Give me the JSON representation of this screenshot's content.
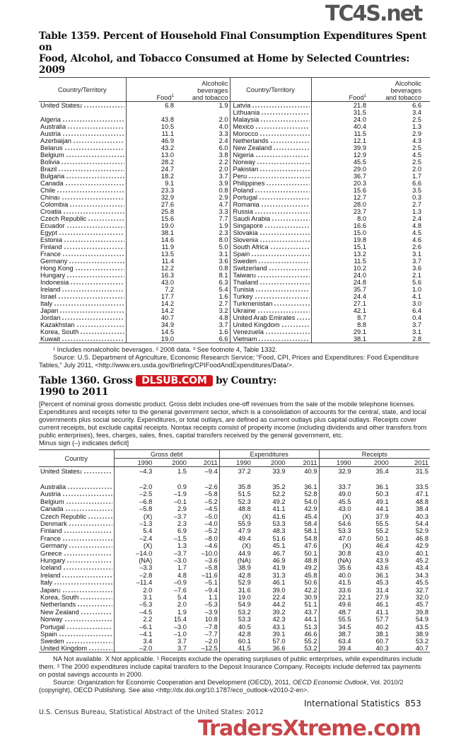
{
  "watermarks": {
    "top": "TC4S.net",
    "middle": "DLSUB.COM",
    "bottom": "TradersXtreme.com"
  },
  "table1359": {
    "title_line1": "Table 1359. Percent of Household Final Consumption Expenditures Spent on",
    "title_line2": "Food, Alcohol, and Tobacco Consumed at Home by Selected Countries: 2009",
    "headers": {
      "country": "Country/Territory",
      "food": "Food",
      "food_sup": "1",
      "alc_l1": "Alcoholic",
      "alc_l2": "beverages",
      "alc_l3": "and tobacco"
    },
    "left": [
      {
        "name": "United States",
        "sup": "2",
        "food": "6.8",
        "alc": "1.9"
      },
      {
        "name": "",
        "food": "",
        "alc": ""
      },
      {
        "name": "Algeria",
        "food": "43.8",
        "alc": "2.0"
      },
      {
        "name": "Australia",
        "food": "10.5",
        "alc": "4.0"
      },
      {
        "name": "Austria",
        "food": "11.1",
        "alc": "3.3"
      },
      {
        "name": "Azerbaijan",
        "food": "46.9",
        "alc": "2.4"
      },
      {
        "name": "Belarus",
        "food": "43.2",
        "alc": "6.0"
      },
      {
        "name": "Belgium",
        "food": "13.0",
        "alc": "3.8"
      },
      {
        "name": "Bolivia",
        "food": "28.2",
        "alc": "2.2"
      },
      {
        "name": "Brazil",
        "food": "24.7",
        "alc": "2.0"
      },
      {
        "name": "Bulgaria",
        "food": "18.2",
        "alc": "3.7"
      },
      {
        "name": "Canada",
        "food": "9.1",
        "alc": "3.9"
      },
      {
        "name": "Chile",
        "food": "23.3",
        "alc": "0.8"
      },
      {
        "name": "China",
        "sup": "3",
        "food": "32.9",
        "alc": "2.9"
      },
      {
        "name": "Colombia",
        "food": "27.6",
        "alc": "4.7"
      },
      {
        "name": "Croatia",
        "food": "25.8",
        "alc": "3.3"
      },
      {
        "name": "Czech Republic",
        "food": "15.6",
        "alc": "7.7"
      },
      {
        "name": "Ecuador",
        "food": "19.0",
        "alc": "1.9"
      },
      {
        "name": "Egypt",
        "food": "38.1",
        "alc": "2.3"
      },
      {
        "name": "Estonia",
        "food": "14.6",
        "alc": "8.0"
      },
      {
        "name": "Finland",
        "food": "11.9",
        "alc": "5.0"
      },
      {
        "name": "France",
        "food": "13.5",
        "alc": "3.1"
      },
      {
        "name": "Germany",
        "food": "11.4",
        "alc": "3.6"
      },
      {
        "name": "Hong Kong",
        "food": "12.2",
        "alc": "0.8"
      },
      {
        "name": "Hungary",
        "food": "16.3",
        "alc": "8.1"
      },
      {
        "name": "Indonesia",
        "food": "43.0",
        "alc": "6.3"
      },
      {
        "name": "Ireland",
        "food": "7.2",
        "alc": "5.4"
      },
      {
        "name": "Israel",
        "food": "17.7",
        "alc": "1.6"
      },
      {
        "name": "Italy",
        "food": "14.2",
        "alc": "2.7"
      },
      {
        "name": "Japan",
        "food": "14.2",
        "alc": "3.2"
      },
      {
        "name": "Jordan",
        "food": "40.7",
        "alc": "4.8"
      },
      {
        "name": "Kazakhstan",
        "food": "34.9",
        "alc": "3.7"
      },
      {
        "name": "Korea, South",
        "food": "14.5",
        "alc": "1.6"
      },
      {
        "name": "Kuwait",
        "food": "19.0",
        "alc": "6.6"
      }
    ],
    "right": [
      {
        "name": "Latvia",
        "food": "21.8",
        "alc": "6.6"
      },
      {
        "name": "Lithuania",
        "food": "31.5",
        "alc": "3.4"
      },
      {
        "name": "Malaysia",
        "food": "24.0",
        "alc": "2.5"
      },
      {
        "name": "Mexico",
        "food": "40.4",
        "alc": "1.3"
      },
      {
        "name": "Morocco",
        "food": "11.5",
        "alc": "2.9"
      },
      {
        "name": "Netherlands",
        "food": "12.1",
        "alc": "4.3"
      },
      {
        "name": "New Zealand",
        "food": "39.9",
        "alc": "2.5"
      },
      {
        "name": "Nigeria",
        "food": "12.9",
        "alc": "4.5"
      },
      {
        "name": "Norway",
        "food": "45.5",
        "alc": "2.5"
      },
      {
        "name": "Pakistan",
        "food": "29.0",
        "alc": "2.0"
      },
      {
        "name": "Peru",
        "food": "36.7",
        "alc": "1.7"
      },
      {
        "name": "Philippines",
        "food": "20.3",
        "alc": "6.6"
      },
      {
        "name": "Poland",
        "food": "15.6",
        "alc": "3.5"
      },
      {
        "name": "Portugal",
        "food": "12.7",
        "alc": "0.3"
      },
      {
        "name": "Romania",
        "food": "28.0",
        "alc": "2.7"
      },
      {
        "name": "Russia",
        "food": "23.7",
        "alc": "1.3"
      },
      {
        "name": "Saudi Arabia",
        "food": "8.0",
        "alc": "2.4"
      },
      {
        "name": "Singapore",
        "food": "16.6",
        "alc": "4.8"
      },
      {
        "name": "Slovakia",
        "food": "15.0",
        "alc": "4.5"
      },
      {
        "name": "Slovenia",
        "food": "19.8",
        "alc": "4.6"
      },
      {
        "name": "South Africa",
        "food": "15.1",
        "alc": "2.6"
      },
      {
        "name": "Spain",
        "food": "13.2",
        "alc": "3.1"
      },
      {
        "name": "Sweden",
        "food": "11.5",
        "alc": "3.7"
      },
      {
        "name": "Switzerland",
        "food": "10.2",
        "alc": "3.6"
      },
      {
        "name": "Taiwan",
        "sup": "3",
        "food": "24.0",
        "alc": "2.1"
      },
      {
        "name": "Thailand",
        "food": "24.8",
        "alc": "5.6"
      },
      {
        "name": "Tunisia",
        "food": "35.7",
        "alc": "1.0"
      },
      {
        "name": "Turkey",
        "food": "24.4",
        "alc": "4.1"
      },
      {
        "name": "Turkmenistan",
        "food": "27.1",
        "alc": "3.0"
      },
      {
        "name": "Ukraine",
        "food": "42.1",
        "alc": "6.4"
      },
      {
        "name": "United Arab Emirates",
        "food": "8.7",
        "alc": "0.4"
      },
      {
        "name": "United Kingdom",
        "food": "8.8",
        "alc": "3.7"
      },
      {
        "name": "Venezuela",
        "food": "29.1",
        "alc": "3.1"
      },
      {
        "name": "Vietnam",
        "food": "38.1",
        "alc": "2.8"
      }
    ],
    "footnotes": "¹ Includes nonalcoholic beverages. ² 2008 data. ³ See footnote 4, Table 1332.",
    "source": "Source: U.S. Department of Agriculture, Economic Research Service; “Food, CPI, Prices and Expenditures: Food Expenditure Tables,” July 2011, <http://www.ers.usda.gov/Briefing/CPIFoodAndExpenditures/Data/>."
  },
  "table1360": {
    "title_start": "Table 1360. Gross",
    "title_end": "by Country:",
    "title_line2": "1990 to 2011",
    "headnote": "[Percent of nominal gross domestic product. Gross debt includes one-off revenues from the sale of the mobile telephone licenses. Expenditures and receipts refer to the general government sector, which is a consolidation of accounts for the central, state, and local governments plus social security. Expenditures, or total outlays, are defined as current outlays plus capital outlays. Receipts cover current receipts, but exclude capital receipts. Nontax receipts consist of property income (including dividends and other transfers from public enterprises), fees, charges, sales, fines, capital transfers received by the general government, etc.",
    "headnote2": "Minus sign (–) indicates deficit]",
    "headers": {
      "country": "Country",
      "groups": [
        "Gross debt",
        "Expenditures",
        "Receipts"
      ],
      "years": [
        "1990",
        "2000",
        "2011"
      ]
    },
    "rows": [
      {
        "name": "United States",
        "sup": "1",
        "v": [
          "–4.3",
          "1.5",
          "–9.4",
          "37.2",
          "33.9",
          "40.9",
          "32.9",
          "35.4",
          "31.5"
        ]
      },
      {
        "name": "",
        "v": [
          "",
          "",
          "",
          "",
          "",
          "",
          "",
          "",
          ""
        ]
      },
      {
        "name": "Australia",
        "v": [
          "–2.0",
          "0.9",
          "–2.6",
          "35.8",
          "35.2",
          "36.1",
          "33.7",
          "36.1",
          "33.5"
        ]
      },
      {
        "name": "Austria",
        "v": [
          "–2.5",
          "–1.9",
          "–5.8",
          "51.5",
          "52.2",
          "52.8",
          "49.0",
          "50.3",
          "47.1"
        ]
      },
      {
        "name": "Belgium",
        "v": [
          "–6.8",
          "–0.1",
          "–5.2",
          "52.3",
          "49.2",
          "54.0",
          "45.5",
          "49.1",
          "48.8"
        ]
      },
      {
        "name": "Canada",
        "v": [
          "–5.8",
          "2.9",
          "–4.5",
          "48.8",
          "41.1",
          "42.9",
          "43.0",
          "44.1",
          "38.4"
        ]
      },
      {
        "name": "Czech Republic",
        "v": [
          "(X)",
          "–3.7",
          "–5.0",
          "(X)",
          "41.6",
          "45.4",
          "(X)",
          "37.9",
          "40.3"
        ]
      },
      {
        "name": "Denmark",
        "v": [
          "–1.3",
          "2.3",
          "–4.0",
          "55.9",
          "53.3",
          "58.4",
          "54.6",
          "55.5",
          "54.4"
        ]
      },
      {
        "name": "Finland",
        "v": [
          "5.4",
          "6.9",
          "–5.2",
          "47.9",
          "48.3",
          "58.1",
          "53.3",
          "55.2",
          "52.9"
        ]
      },
      {
        "name": "France",
        "v": [
          "–2.4",
          "–1.5",
          "–8.0",
          "49.4",
          "51.6",
          "54.8",
          "47.0",
          "50.1",
          "46.8"
        ]
      },
      {
        "name": "Germany",
        "v": [
          "(X)",
          "1.3",
          "–4.6",
          "(X)",
          "45.1",
          "47.6",
          "(X)",
          "46.4",
          "42.9"
        ]
      },
      {
        "name": "Greece",
        "v": [
          "–14.0",
          "–3.7",
          "–10.0",
          "44.9",
          "46.7",
          "50.1",
          "30.8",
          "43.0",
          "40.1"
        ]
      },
      {
        "name": "Hungary",
        "v": [
          "(NA)",
          "–3.0",
          "–3.6",
          "(NA)",
          "46.9",
          "48.8",
          "(NA)",
          "43.9",
          "45.2"
        ]
      },
      {
        "name": "Iceland",
        "v": [
          "–3.3",
          "1.7",
          "–5.8",
          "38.9",
          "41.9",
          "49.2",
          "35.6",
          "43.6",
          "43.4"
        ]
      },
      {
        "name": "Ireland",
        "v": [
          "–2.8",
          "4.8",
          "–11.6",
          "42.8",
          "31.3",
          "45.8",
          "40.0",
          "36.1",
          "34.3"
        ]
      },
      {
        "name": "Italy",
        "v": [
          "–11.4",
          "–0.9",
          "–5.1",
          "52.9",
          "46.1",
          "50.6",
          "41.5",
          "45.3",
          "45.5"
        ]
      },
      {
        "name": "Japan",
        "sup": "2",
        "v": [
          "2.0",
          "–7.6",
          "–9.4",
          "31.6",
          "39.0",
          "42.2",
          "33.6",
          "31.4",
          "32.7"
        ]
      },
      {
        "name": "Korea, South",
        "v": [
          "3.1",
          "5.4",
          "1.1",
          "19.0",
          "22.4",
          "30.9",
          "22.1",
          "27.9",
          "32.0"
        ]
      },
      {
        "name": "Netherlands",
        "v": [
          "–5.3",
          "2.0",
          "–5.3",
          "54.9",
          "44.2",
          "51.1",
          "49.6",
          "46.1",
          "45.7"
        ]
      },
      {
        "name": "New Zealand",
        "v": [
          "–4.5",
          "1.9",
          "–3.9",
          "53.2",
          "39.2",
          "43.7",
          "48.7",
          "41.1",
          "39.8"
        ]
      },
      {
        "name": "Norway",
        "v": [
          "2.2",
          "15.4",
          "10.8",
          "53.3",
          "42.3",
          "44.1",
          "55.5",
          "57.7",
          "54.9"
        ]
      },
      {
        "name": "Portugal",
        "v": [
          "–6.1",
          "–3.0",
          "–7.8",
          "40.5",
          "43.1",
          "51.3",
          "34.5",
          "40.2",
          "43.5"
        ]
      },
      {
        "name": "Spain",
        "v": [
          "–4.1",
          "–1.0",
          "–7.7",
          "42.8",
          "39.1",
          "46.6",
          "38.7",
          "38.1",
          "38.9"
        ]
      },
      {
        "name": "Sweden",
        "v": [
          "3.4",
          "3.7",
          "–2.0",
          "60.1",
          "57.0",
          "55.2",
          "63.4",
          "60.7",
          "53.2"
        ]
      },
      {
        "name": "United Kingdom",
        "v": [
          "–2.0",
          "3.7",
          "–12.5",
          "41.5",
          "36.6",
          "53.2",
          "39.4",
          "40.3",
          "40.7"
        ]
      }
    ],
    "footnotes": "NA Not available. X Not applicable. ¹ Receipts exclude the operating surpluses of public enterprises, while expenditures include them. ² The 2000 expenditures include capital transfers to the Deposit Insurance Company. Receipts include deferred tax payments on postal savings accounts in 2000.",
    "source_a": "Source: Organization for Economic Cooperation and Development (OECD), 2011, ",
    "source_italic": "OECD Economic Outlook",
    "source_b": ", Vol. 2010/2 (copyright), OECD Publishing. See also <http://dx.doi.org/10.1787/eco_outlook-v2010-2-en>."
  },
  "footer": {
    "section": "International Statistics",
    "page": "853",
    "publisher": "U.S. Census Bureau, Statistical Abstract of the United States: 2012"
  }
}
